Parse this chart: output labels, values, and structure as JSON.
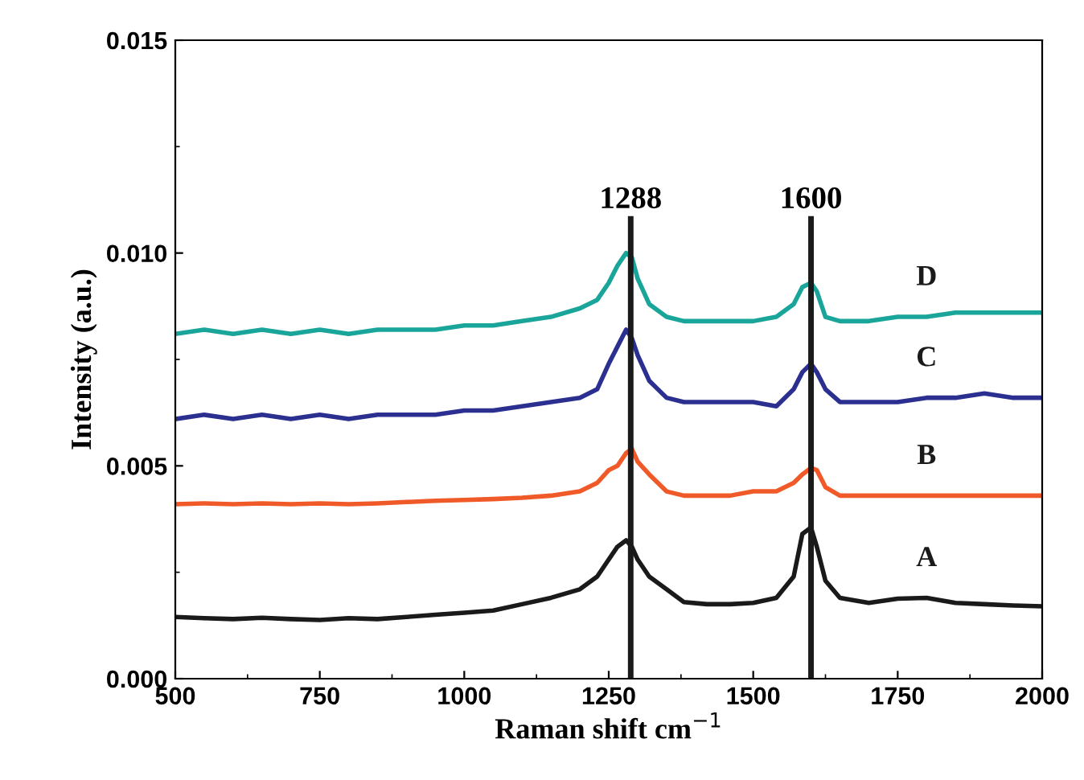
{
  "chart_data": {
    "type": "line",
    "xlabel": "Raman shift cm$^{−1}$",
    "ylabel": "Intensity (a.u.)",
    "x": [
      500,
      550,
      600,
      650,
      700,
      750,
      800,
      850,
      900,
      950,
      1000,
      1050,
      1100,
      1150,
      1200,
      1230,
      1250,
      1265,
      1280,
      1290,
      1300,
      1320,
      1350,
      1380,
      1420,
      1460,
      1500,
      1540,
      1570,
      1585,
      1600,
      1610,
      1625,
      1650,
      1700,
      1750,
      1800,
      1850,
      1900,
      1950,
      2000
    ],
    "series": [
      {
        "name": "A",
        "color": "#1a1a1a",
        "values": [
          0.00145,
          0.00142,
          0.0014,
          0.00143,
          0.0014,
          0.00138,
          0.00142,
          0.0014,
          0.00145,
          0.0015,
          0.00155,
          0.0016,
          0.00175,
          0.0019,
          0.0021,
          0.0024,
          0.0028,
          0.0031,
          0.00325,
          0.0031,
          0.0028,
          0.0024,
          0.0021,
          0.0018,
          0.00175,
          0.00175,
          0.00178,
          0.0019,
          0.0024,
          0.0034,
          0.00355,
          0.0031,
          0.0023,
          0.0019,
          0.00178,
          0.00188,
          0.0019,
          0.00178,
          0.00175,
          0.00172,
          0.0017
        ]
      },
      {
        "name": "B",
        "color": "#f05a28",
        "values": [
          0.0041,
          0.00412,
          0.0041,
          0.00412,
          0.0041,
          0.00412,
          0.0041,
          0.00412,
          0.00415,
          0.00418,
          0.0042,
          0.00422,
          0.00425,
          0.0043,
          0.0044,
          0.0046,
          0.0049,
          0.005,
          0.0053,
          0.0054,
          0.0051,
          0.0048,
          0.0044,
          0.0043,
          0.0043,
          0.0043,
          0.0044,
          0.0044,
          0.0046,
          0.0048,
          0.00495,
          0.0049,
          0.0045,
          0.0043,
          0.0043,
          0.0043,
          0.0043,
          0.0043,
          0.0043,
          0.0043,
          0.0043
        ]
      },
      {
        "name": "C",
        "color": "#2b3090",
        "values": [
          0.0061,
          0.0062,
          0.0061,
          0.0062,
          0.0061,
          0.0062,
          0.0061,
          0.0062,
          0.0062,
          0.0062,
          0.0063,
          0.0063,
          0.0064,
          0.0065,
          0.0066,
          0.0068,
          0.0074,
          0.0078,
          0.0082,
          0.008,
          0.0076,
          0.007,
          0.0066,
          0.0065,
          0.0065,
          0.0065,
          0.0065,
          0.0064,
          0.0068,
          0.0072,
          0.0074,
          0.0072,
          0.0068,
          0.0065,
          0.0065,
          0.0065,
          0.0066,
          0.0066,
          0.0067,
          0.0066,
          0.0066
        ]
      },
      {
        "name": "D",
        "color": "#1aa59a",
        "values": [
          0.0081,
          0.0082,
          0.0081,
          0.0082,
          0.0081,
          0.0082,
          0.0081,
          0.0082,
          0.0082,
          0.0082,
          0.0083,
          0.0083,
          0.0084,
          0.0085,
          0.0087,
          0.0089,
          0.0093,
          0.0097,
          0.01,
          0.0099,
          0.0094,
          0.0088,
          0.0085,
          0.0084,
          0.0084,
          0.0084,
          0.0084,
          0.0085,
          0.0088,
          0.0092,
          0.0093,
          0.0091,
          0.0085,
          0.0084,
          0.0084,
          0.0085,
          0.0085,
          0.0086,
          0.0086,
          0.0086,
          0.0086
        ]
      }
    ],
    "xlim": [
      500,
      2000
    ],
    "xticks": [
      500,
      750,
      1000,
      1250,
      1500,
      1750,
      2000
    ],
    "ylim": [
      0,
      0.015
    ],
    "yticks": [
      {
        "value": 0,
        "label": "0.000"
      },
      {
        "value": 0.005,
        "label": "0.005"
      },
      {
        "value": 0.01,
        "label": "0.010"
      },
      {
        "value": 0.015,
        "label": "0.015"
      }
    ],
    "ref_lines": [
      {
        "axis": "x",
        "value": 1288,
        "label": "1288",
        "color": "#1a1a1a"
      },
      {
        "axis": "x",
        "value": 1600,
        "label": "1600",
        "color": "#1a1a1a"
      }
    ],
    "grid": false,
    "legend": false
  }
}
